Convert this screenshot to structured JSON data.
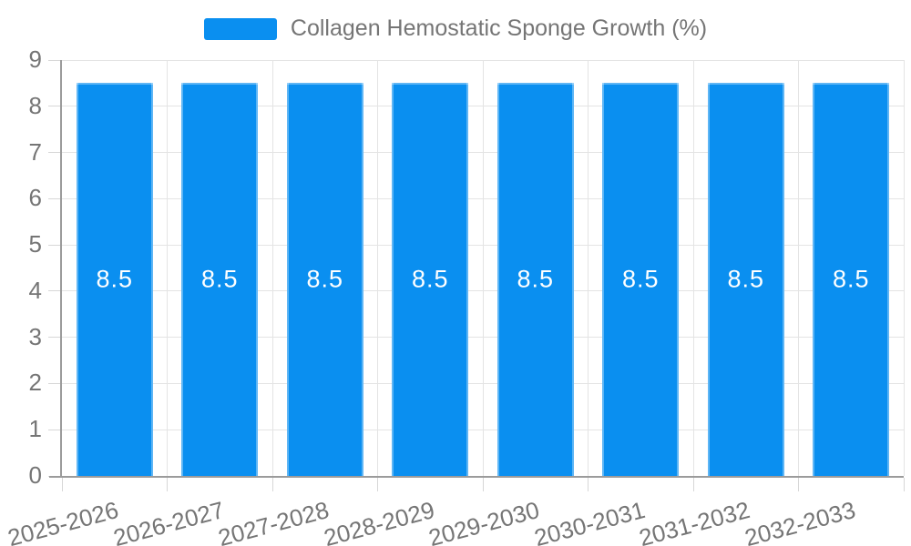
{
  "chart_data": {
    "type": "bar",
    "title": "Collagen Hemostatic Sponge Growth (%)",
    "categories": [
      "2025-2026",
      "2026-2027",
      "2027-2028",
      "2028-2029",
      "2029-2030",
      "2030-2031",
      "2031-2032",
      "2032-2033"
    ],
    "series": [
      {
        "name": "Collagen Hemostatic Sponge Growth (%)",
        "values": [
          8.5,
          8.5,
          8.5,
          8.5,
          8.5,
          8.5,
          8.5,
          8.5
        ],
        "color": "#0a8ff0"
      }
    ],
    "bar_value_labels": [
      "8.5",
      "8.5",
      "8.5",
      "8.5",
      "8.5",
      "8.5",
      "8.5",
      "8.5"
    ],
    "xlabel": "",
    "ylabel": "",
    "ylim": [
      0,
      9
    ],
    "yticks": [
      0,
      1,
      2,
      3,
      4,
      5,
      6,
      7,
      8,
      9
    ],
    "grid": true,
    "legend_position": "top",
    "x_label_rotation_deg": -15,
    "colors": {
      "bar": "#0a8ff0",
      "bar_edge_highlight": "rgba(255,255,255,0.35)",
      "axis_line": "#9b9b9b",
      "grid_line": "#e4e4e4",
      "tick_mark": "#d7d7d7",
      "axis_text": "#757575",
      "bar_label_text": "#ffffff",
      "background": "#ffffff"
    }
  }
}
